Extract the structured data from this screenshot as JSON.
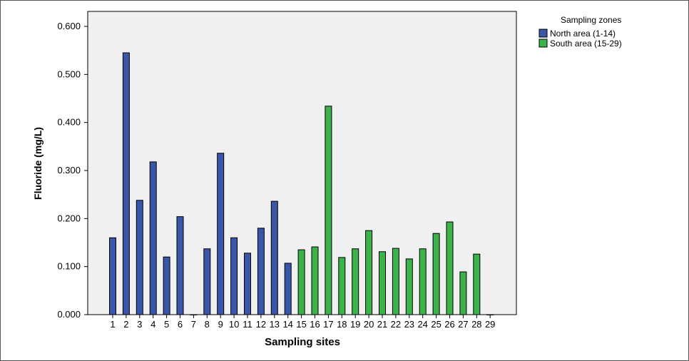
{
  "chart_data": {
    "type": "bar",
    "xlabel": "Sampling sites",
    "ylabel": "Fluoride (mg/L)",
    "ylim": [
      0,
      0.6
    ],
    "yticks": [
      "0.000",
      "0.100",
      "0.200",
      "0.300",
      "0.400",
      "0.500",
      "0.600"
    ],
    "grid": false,
    "legend": {
      "title": "Sampling zones",
      "placement": "right"
    },
    "categories": [
      "1",
      "2",
      "3",
      "4",
      "5",
      "6",
      "7",
      "8",
      "9",
      "10",
      "11",
      "12",
      "13",
      "14",
      "15",
      "16",
      "17",
      "18",
      "19",
      "20",
      "21",
      "22",
      "23",
      "24",
      "25",
      "26",
      "27",
      "28",
      "29"
    ],
    "series": [
      {
        "name": "North area (1-14)",
        "color": "#3A56A8",
        "values": [
          0.16,
          0.545,
          0.238,
          0.318,
          0.12,
          0.204,
          0.0,
          0.137,
          0.336,
          0.16,
          0.128,
          0.18,
          0.236,
          0.107,
          null,
          null,
          null,
          null,
          null,
          null,
          null,
          null,
          null,
          null,
          null,
          null,
          null,
          null,
          null
        ]
      },
      {
        "name": "South area (15-29)",
        "color": "#3CB34A",
        "values": [
          null,
          null,
          null,
          null,
          null,
          null,
          null,
          null,
          null,
          null,
          null,
          null,
          null,
          null,
          0.135,
          0.141,
          0.434,
          0.119,
          0.137,
          0.175,
          0.131,
          0.138,
          0.116,
          0.137,
          0.169,
          0.193,
          0.089,
          0.126,
          0.0
        ]
      }
    ]
  }
}
